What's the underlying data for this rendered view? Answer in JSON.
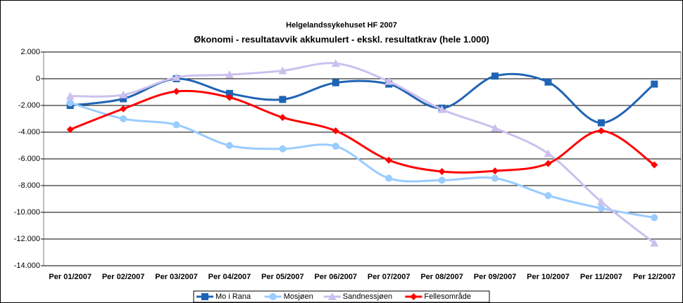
{
  "chart_data": {
    "type": "line",
    "supertitle": "Helgelandssykehuset HF 2007",
    "title": "Økonomi - resultatavvik akkumulert - ekskl. resultatkrav (hele 1.000)",
    "categories": [
      "Per 01/2007",
      "Per 02/2007",
      "Per 03/2007",
      "Per 04/2007",
      "Per 05/2007",
      "Per 06/2007",
      "Per 07/2007",
      "Per 08/2007",
      "Per 09/2007",
      "Per 10/2007",
      "Per 11/2007",
      "Per 12/2007"
    ],
    "series": [
      {
        "name": "Mo i Rana",
        "color": "#1f64b4",
        "marker": "square",
        "values": [
          -2000,
          -1500,
          0,
          -1100,
          -1550,
          -300,
          -400,
          -2200,
          200,
          -250,
          -3300,
          -400
        ]
      },
      {
        "name": "Mosjøen",
        "color": "#99ccff",
        "marker": "circle",
        "values": [
          -1800,
          -3000,
          -3450,
          -5000,
          -5250,
          -5050,
          -7450,
          -7600,
          -7450,
          -8750,
          -9700,
          -10400
        ]
      },
      {
        "name": "Sandnessjøen",
        "color": "#ccc0ee",
        "marker": "triangle",
        "values": [
          -1300,
          -1200,
          100,
          300,
          600,
          1150,
          -200,
          -2300,
          -3700,
          -5600,
          -9200,
          -12300
        ]
      },
      {
        "name": "Fellesområde",
        "color": "#ff0000",
        "marker": "diamond",
        "values": [
          -3800,
          -2250,
          -950,
          -1400,
          -2900,
          -3900,
          -6100,
          -6950,
          -6900,
          -6350,
          -3900,
          -6450
        ]
      }
    ],
    "ylim": [
      -14000,
      2000
    ],
    "yticks": [
      {
        "value": -14000,
        "label": "-14.000"
      },
      {
        "value": -12000,
        "label": "-12.000"
      },
      {
        "value": -10000,
        "label": "-10.000"
      },
      {
        "value": -8000,
        "label": "-8.000"
      },
      {
        "value": -6000,
        "label": "-6.000"
      },
      {
        "value": -4000,
        "label": "-4.000"
      },
      {
        "value": -2000,
        "label": "-2.000"
      },
      0,
      {
        "value": 2000,
        "label": "2.000"
      }
    ],
    "grid": true,
    "legend": "bottom"
  }
}
